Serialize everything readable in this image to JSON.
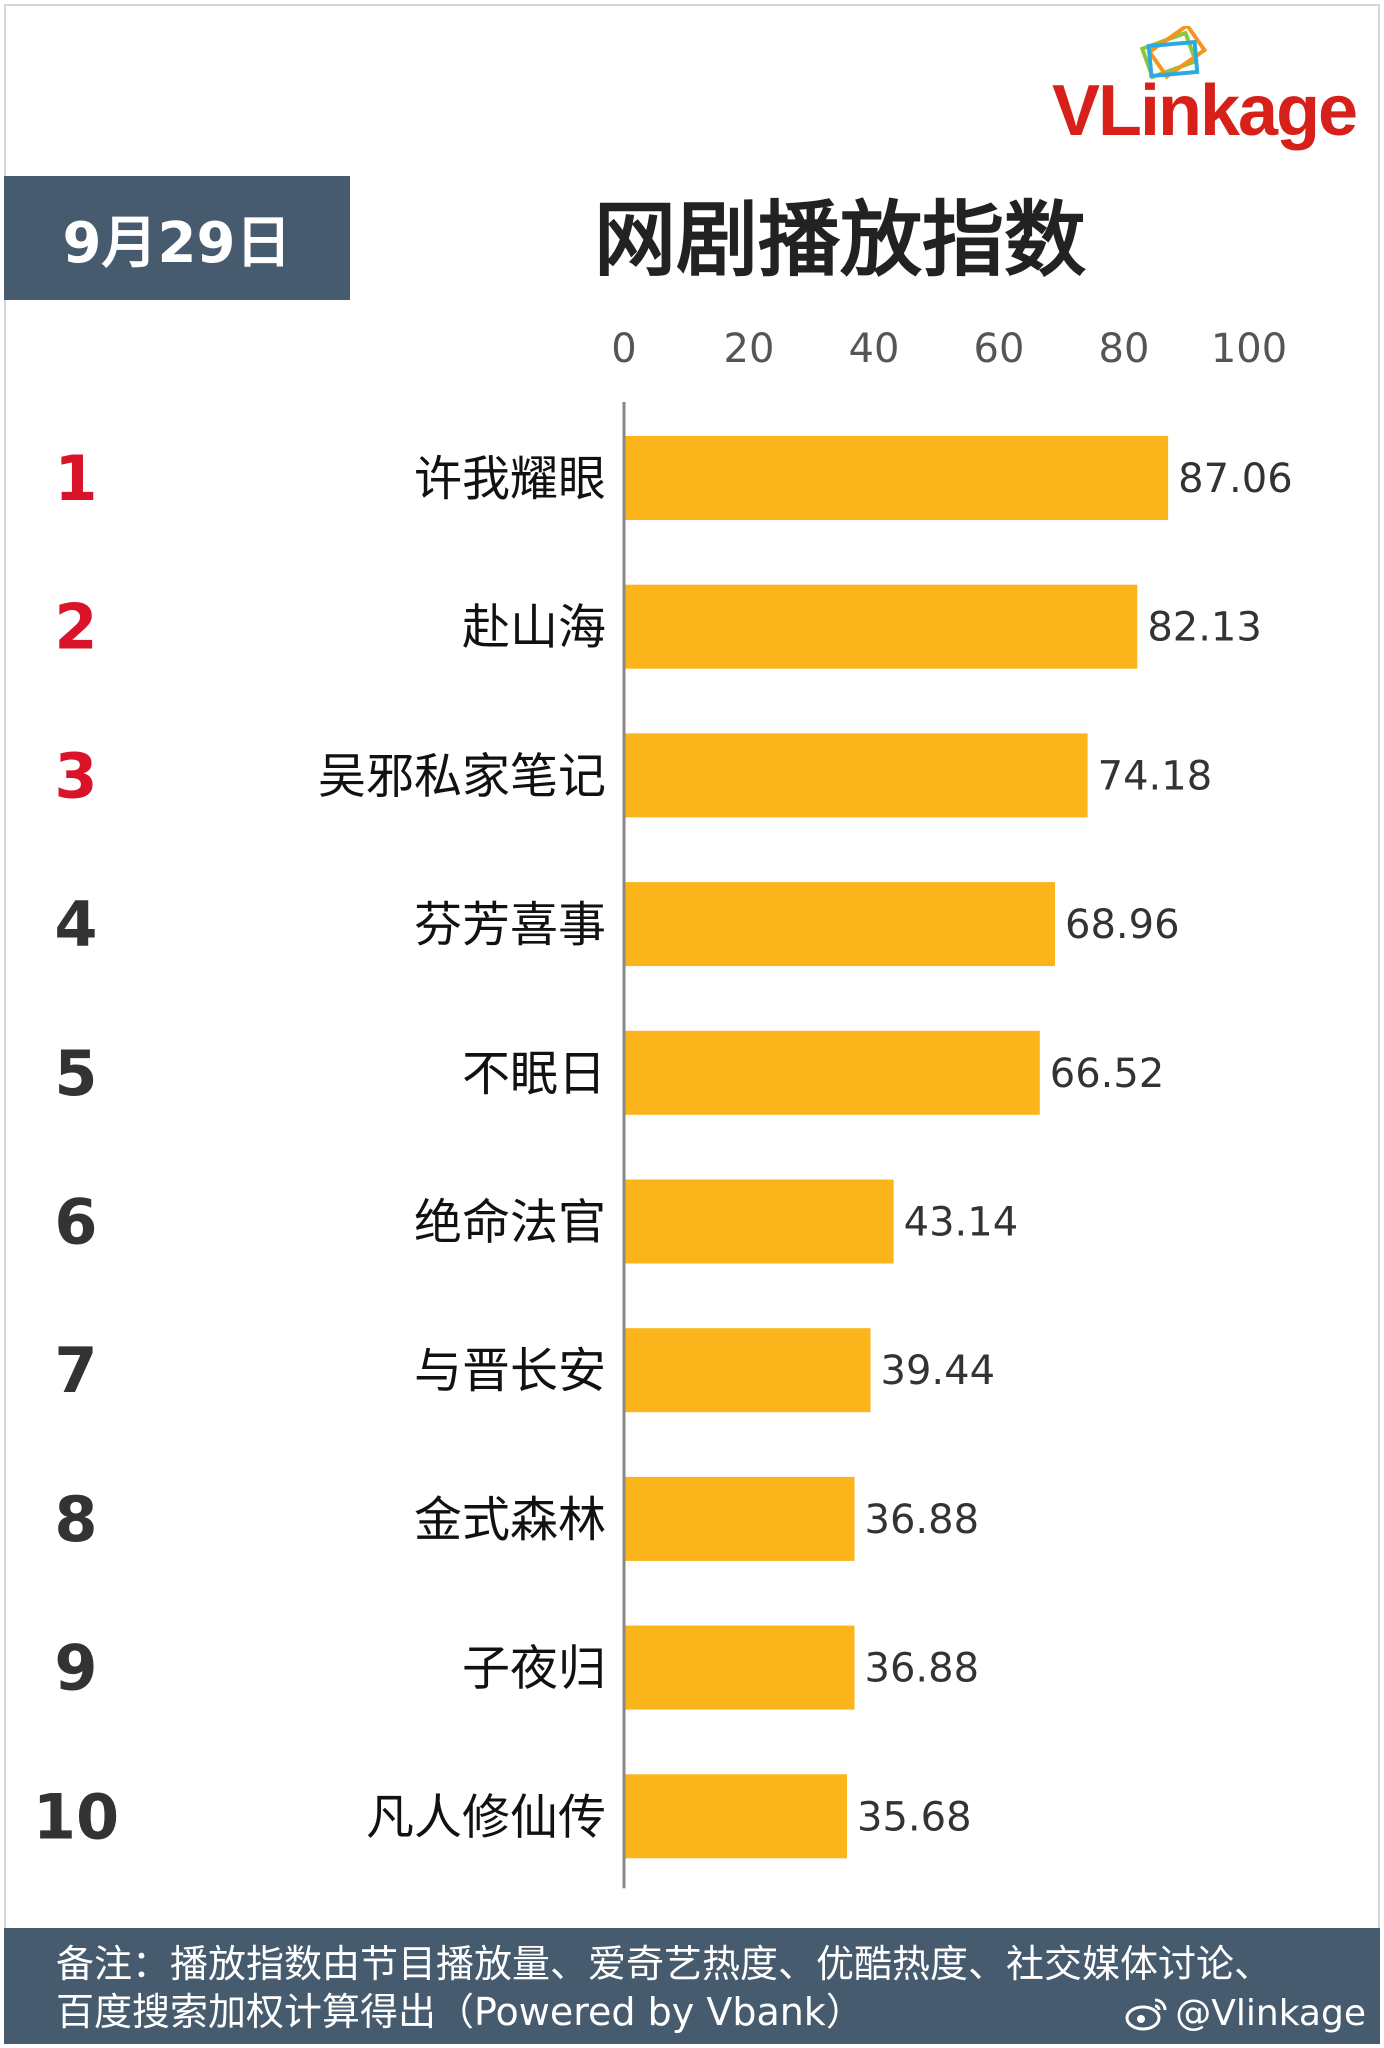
{
  "logo": {
    "text": "VLinkage"
  },
  "header": {
    "date": "9月29日",
    "title": "网剧播放指数"
  },
  "colors": {
    "bar": "#fbb419",
    "top_rank": "#d8132a",
    "rank": "#333333",
    "badge": "#465b6e"
  },
  "chart_data": {
    "type": "bar",
    "orientation": "horizontal",
    "title": "网剧播放指数",
    "xlim": [
      0,
      100
    ],
    "x_ticks": [
      0,
      20,
      40,
      60,
      80,
      100
    ],
    "ranks": [
      "1",
      "2",
      "3",
      "4",
      "5",
      "6",
      "7",
      "8",
      "9",
      "10"
    ],
    "categories": [
      "许我耀眼",
      "赴山海",
      "吴邪私家笔记",
      "芬芳喜事",
      "不眠日",
      "绝命法官",
      "与晋长安",
      "金式森林",
      "子夜归",
      "凡人修仙传"
    ],
    "values": [
      87.06,
      82.13,
      74.18,
      68.96,
      66.52,
      43.14,
      39.44,
      36.88,
      36.88,
      35.68
    ],
    "value_labels": [
      "87.06",
      "82.13",
      "74.18",
      "68.96",
      "66.52",
      "43.14",
      "39.44",
      "36.88",
      "36.88",
      "35.68"
    ],
    "grid": false,
    "legend": "none"
  },
  "footer": {
    "note": "备注：播放指数由节目播放量、爱奇艺热度、优酷热度、社交媒体讨论、百度搜索加权计算得出（Powered by Vbank）",
    "handle": "@Vlinkage",
    "handle_icon": "weibo-icon"
  }
}
